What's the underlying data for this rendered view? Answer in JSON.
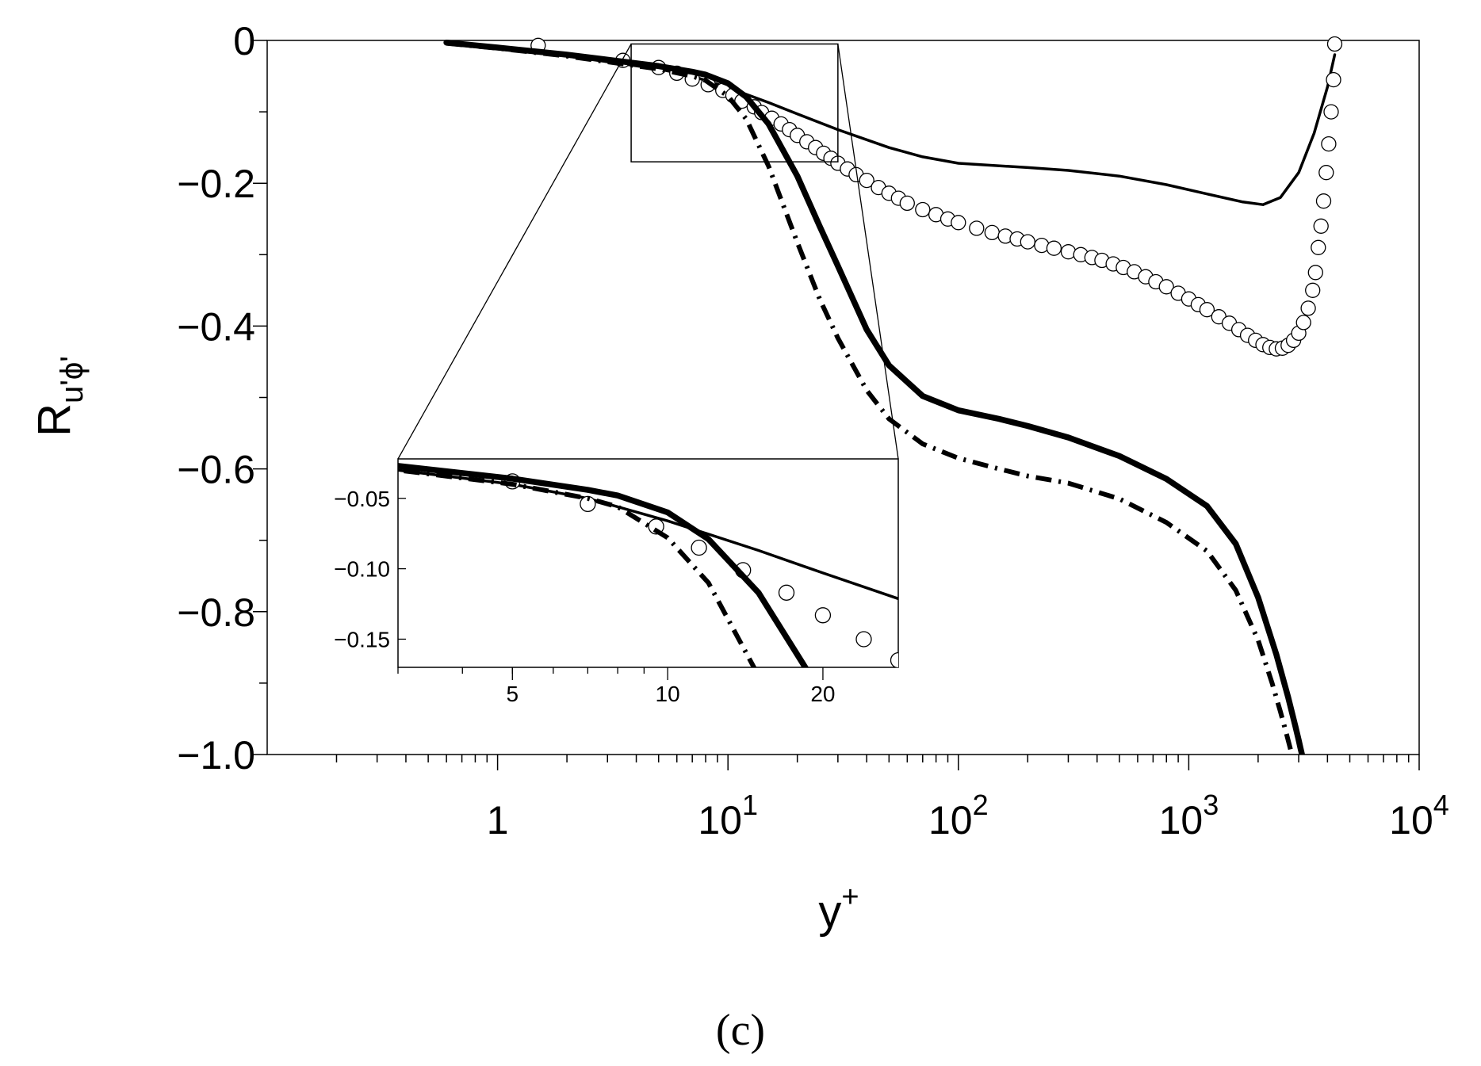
{
  "caption": "(c)",
  "chart_data": {
    "type": "line",
    "title": "",
    "xlabel_base": "y",
    "xlabel_sup": "+",
    "ylabel_base": "R",
    "ylabel_sub": "u'ϕ'",
    "xscale": "log",
    "xlim": [
      0.1,
      10000
    ],
    "ylim": [
      -1.0,
      0
    ],
    "x_ticks": [
      {
        "value": 1,
        "base": "1",
        "exp": ""
      },
      {
        "value": 10,
        "base": "10",
        "exp": "1"
      },
      {
        "value": 100,
        "base": "10",
        "exp": "2"
      },
      {
        "value": 1000,
        "base": "10",
        "exp": "3"
      },
      {
        "value": 10000,
        "base": "10",
        "exp": "4"
      }
    ],
    "y_ticks": [
      {
        "value": 0,
        "label": "0"
      },
      {
        "value": -0.2,
        "label": "−0.2"
      },
      {
        "value": -0.4,
        "label": "−0.4"
      },
      {
        "value": -0.6,
        "label": "−0.6"
      },
      {
        "value": -0.8,
        "label": "−0.8"
      },
      {
        "value": -1.0,
        "label": "−1.0"
      }
    ],
    "series": [
      {
        "name": "thin-solid",
        "style": "solid",
        "x": [
          0.6,
          1,
          2,
          3,
          5,
          7,
          10,
          15,
          20,
          30,
          50,
          70,
          100,
          200,
          300,
          500,
          800,
          1200,
          1700,
          2100,
          2500,
          3000,
          3500,
          4000,
          4300
        ],
        "y": [
          -0.005,
          -0.012,
          -0.022,
          -0.03,
          -0.04,
          -0.05,
          -0.066,
          -0.087,
          -0.103,
          -0.125,
          -0.15,
          -0.163,
          -0.172,
          -0.178,
          -0.182,
          -0.19,
          -0.202,
          -0.215,
          -0.226,
          -0.23,
          -0.22,
          -0.185,
          -0.13,
          -0.065,
          -0.02
        ]
      },
      {
        "name": "circles",
        "style": "markers",
        "x": [
          1.5,
          3.5,
          5,
          6,
          7,
          8.2,
          9.5,
          10.5,
          11.5,
          13,
          14,
          15.5,
          17,
          18.5,
          20,
          22,
          24,
          26,
          28,
          30,
          33,
          36,
          40,
          45,
          50,
          55,
          60,
          70,
          80,
          90,
          100,
          120,
          140,
          160,
          180,
          200,
          230,
          260,
          300,
          340,
          380,
          420,
          470,
          520,
          580,
          650,
          720,
          800,
          900,
          1000,
          1100,
          1200,
          1350,
          1500,
          1650,
          1800,
          1950,
          2100,
          2250,
          2400,
          2550,
          2700,
          2850,
          3000,
          3150,
          3300,
          3450,
          3550,
          3650,
          3750,
          3850,
          3950,
          4050,
          4150,
          4250,
          4300
        ],
        "y": [
          -0.007,
          -0.028,
          -0.038,
          -0.046,
          -0.054,
          -0.062,
          -0.07,
          -0.077,
          -0.085,
          -0.093,
          -0.101,
          -0.109,
          -0.117,
          -0.125,
          -0.133,
          -0.142,
          -0.15,
          -0.158,
          -0.165,
          -0.172,
          -0.18,
          -0.188,
          -0.196,
          -0.206,
          -0.214,
          -0.221,
          -0.228,
          -0.237,
          -0.244,
          -0.25,
          -0.255,
          -0.263,
          -0.269,
          -0.274,
          -0.278,
          -0.282,
          -0.287,
          -0.291,
          -0.296,
          -0.3,
          -0.304,
          -0.308,
          -0.313,
          -0.318,
          -0.324,
          -0.331,
          -0.338,
          -0.345,
          -0.354,
          -0.362,
          -0.37,
          -0.377,
          -0.387,
          -0.396,
          -0.405,
          -0.413,
          -0.42,
          -0.426,
          -0.43,
          -0.432,
          -0.431,
          -0.427,
          -0.42,
          -0.41,
          -0.395,
          -0.375,
          -0.35,
          -0.325,
          -0.29,
          -0.26,
          -0.225,
          -0.185,
          -0.145,
          -0.1,
          -0.055,
          -0.005
        ]
      },
      {
        "name": "thick-solid",
        "style": "thick",
        "x": [
          0.6,
          1,
          2,
          3,
          5,
          7,
          8,
          10,
          12,
          15,
          20,
          25,
          30,
          40,
          50,
          70,
          100,
          150,
          200,
          300,
          500,
          800,
          1200,
          1600,
          2000,
          2400,
          2700,
          2900,
          3000,
          3050,
          3100
        ],
        "y": [
          -0.003,
          -0.01,
          -0.02,
          -0.027,
          -0.036,
          -0.044,
          -0.048,
          -0.06,
          -0.079,
          -0.117,
          -0.19,
          -0.26,
          -0.316,
          -0.405,
          -0.455,
          -0.498,
          -0.518,
          -0.53,
          -0.54,
          -0.556,
          -0.582,
          -0.614,
          -0.652,
          -0.705,
          -0.78,
          -0.86,
          -0.92,
          -0.96,
          -0.98,
          -0.99,
          -1.0
        ]
      },
      {
        "name": "dash-dot",
        "style": "dashdot",
        "x": [
          0.6,
          1,
          2,
          3,
          5,
          7,
          8,
          10,
          12,
          15,
          20,
          25,
          30,
          40,
          50,
          70,
          100,
          150,
          200,
          300,
          500,
          800,
          1200,
          1600,
          2000,
          2300,
          2500,
          2650,
          2750,
          2800
        ],
        "y": [
          -0.004,
          -0.011,
          -0.022,
          -0.03,
          -0.04,
          -0.05,
          -0.056,
          -0.078,
          -0.11,
          -0.176,
          -0.283,
          -0.362,
          -0.417,
          -0.49,
          -0.53,
          -0.565,
          -0.585,
          -0.6,
          -0.61,
          -0.62,
          -0.642,
          -0.675,
          -0.715,
          -0.77,
          -0.84,
          -0.9,
          -0.94,
          -0.97,
          -0.99,
          -1.0
        ]
      }
    ],
    "inset": {
      "xscale": "log",
      "xlim": [
        3,
        28
      ],
      "ylim": [
        -0.17,
        -0.022
      ],
      "x_ticks": [
        {
          "value": 5,
          "label": "5"
        },
        {
          "value": 10,
          "label": "10"
        },
        {
          "value": 20,
          "label": "20"
        }
      ],
      "y_ticks": [
        {
          "value": -0.05,
          "label": "−0.05"
        },
        {
          "value": -0.1,
          "label": "−0.10"
        },
        {
          "value": -0.15,
          "label": "−0.15"
        }
      ],
      "zoom_box": {
        "xlim": [
          3.8,
          30
        ],
        "ylim": [
          -0.17,
          -0.005
        ]
      }
    }
  }
}
